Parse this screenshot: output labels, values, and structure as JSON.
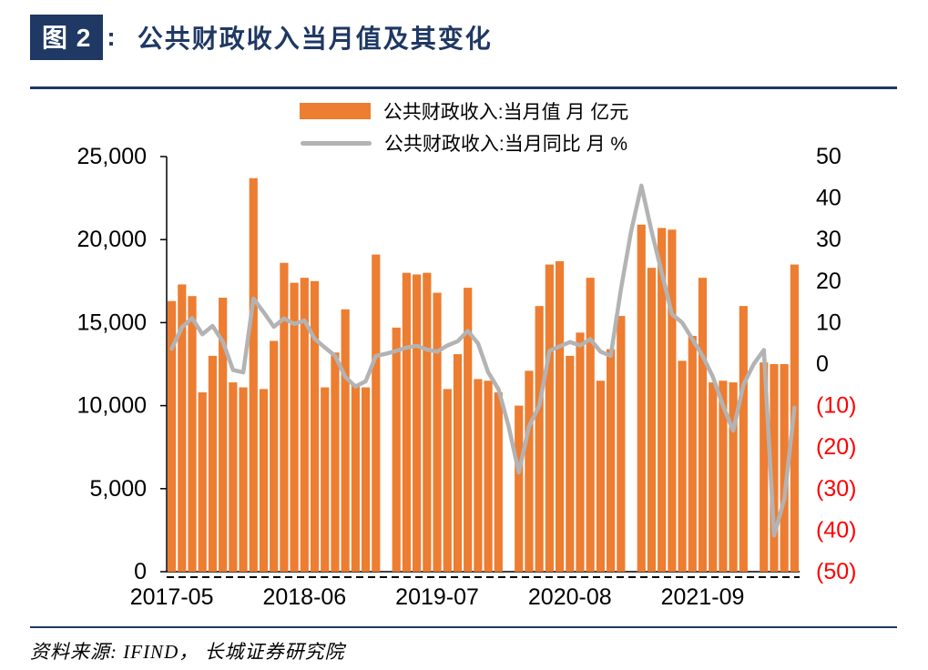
{
  "header": {
    "figure_label": "图 2",
    "separator": ":",
    "title": "公共财政收入当月值及其变化"
  },
  "legend": [
    {
      "label": "公共财政收入:当月值 月 亿元"
    },
    {
      "label": "公共财政收入:当月同比 月 %"
    }
  ],
  "footer": {
    "source": "资料来源: IFIND， 长城证券研究院"
  },
  "colors": {
    "bar": "#ED7D31",
    "line": "#B3B3B3",
    "accent_navy": "#1F3864",
    "negative_axis_red": "#FF0000"
  },
  "chart_data": {
    "type": "combo",
    "grid": false,
    "legend_position": "top",
    "x": [
      "2017-05",
      "2017-06",
      "2017-07",
      "2017-08",
      "2017-09",
      "2017-10",
      "2017-11",
      "2017-12",
      "2018-01",
      "2018-02",
      "2018-03",
      "2018-04",
      "2018-05",
      "2018-06",
      "2018-07",
      "2018-08",
      "2018-09",
      "2018-10",
      "2018-11",
      "2018-12",
      "2019-01",
      "2019-02",
      "2019-03",
      "2019-04",
      "2019-05",
      "2019-06",
      "2019-07",
      "2019-08",
      "2019-09",
      "2019-10",
      "2019-11",
      "2019-12",
      "2020-01",
      "2020-02",
      "2020-03",
      "2020-04",
      "2020-05",
      "2020-06",
      "2020-07",
      "2020-08",
      "2020-09",
      "2020-10",
      "2020-11",
      "2020-12",
      "2021-01",
      "2021-02",
      "2021-03",
      "2021-04",
      "2021-05",
      "2021-06",
      "2021-07",
      "2021-08",
      "2021-09",
      "2021-10",
      "2021-11",
      "2021-12",
      "2022-01",
      "2022-02",
      "2022-03",
      "2022-04",
      "2022-05",
      "2022-06"
    ],
    "series": [
      {
        "name": "公共财政收入:当月值 月 亿元",
        "type": "bar",
        "axis": "left",
        "color": "#ED7D31",
        "values": [
          16300,
          17300,
          16600,
          10800,
          13000,
          16500,
          11400,
          11100,
          23700,
          11000,
          13900,
          18600,
          17400,
          17700,
          17500,
          11100,
          13200,
          15800,
          11200,
          11100,
          19100,
          null,
          14700,
          18000,
          17900,
          18000,
          16800,
          11000,
          13100,
          17100,
          11600,
          11500,
          10800,
          null,
          10000,
          12100,
          16000,
          18500,
          18700,
          13000,
          14400,
          17700,
          11500,
          13400,
          15400,
          null,
          20900,
          18300,
          20700,
          20600,
          12700,
          14200,
          17700,
          11400,
          11500,
          11400,
          16000,
          null,
          12600,
          12500,
          12500,
          18500
        ]
      },
      {
        "name": "公共财政收入:当月同比 月 %",
        "type": "line",
        "axis": "right",
        "color": "#B3B3B3",
        "values": [
          3.7,
          8.9,
          11.1,
          7.2,
          9.2,
          5.4,
          -1.4,
          -2.0,
          15.8,
          12.5,
          9.0,
          11.0,
          9.7,
          10.5,
          6.1,
          4.0,
          2.0,
          -3.1,
          -5.4,
          -4.1,
          2.0,
          2.5,
          3.2,
          4.0,
          4.4,
          3.5,
          3.0,
          4.5,
          5.5,
          8.0,
          5.0,
          -2.0,
          -6.0,
          -15.0,
          -26.1,
          -15.0,
          -10.0,
          3.2,
          4.3,
          5.3,
          4.5,
          6.0,
          3.0,
          2.0,
          18.0,
          32.0,
          43.0,
          32.0,
          22.0,
          12.0,
          10.0,
          6.0,
          2.0,
          -3.0,
          -10.0,
          -16.0,
          -5.0,
          0.0,
          3.4,
          -41.3,
          -32.5,
          -10.5
        ]
      }
    ],
    "left_axis": {
      "min": 0,
      "max": 25000,
      "tick_values": [
        25000,
        20000,
        15000,
        10000,
        5000,
        0
      ],
      "tick_labels": [
        "25,000",
        "20,000",
        "15,000",
        "10,000",
        "5,000",
        "0"
      ]
    },
    "right_axis": {
      "min": -50,
      "max": 50,
      "tick_values": [
        50,
        40,
        30,
        20,
        10,
        0,
        -10,
        -20,
        -30,
        -40,
        -50
      ],
      "tick_labels": [
        "50",
        "40",
        "30",
        "20",
        "10",
        "0",
        "(10)",
        "(20)",
        "(30)",
        "(40)",
        "(50)"
      ],
      "negative_color": "#FF0000"
    },
    "x_tick_labels": [
      "2017-05",
      "2018-06",
      "2019-07",
      "2020-08",
      "2021-09"
    ]
  }
}
